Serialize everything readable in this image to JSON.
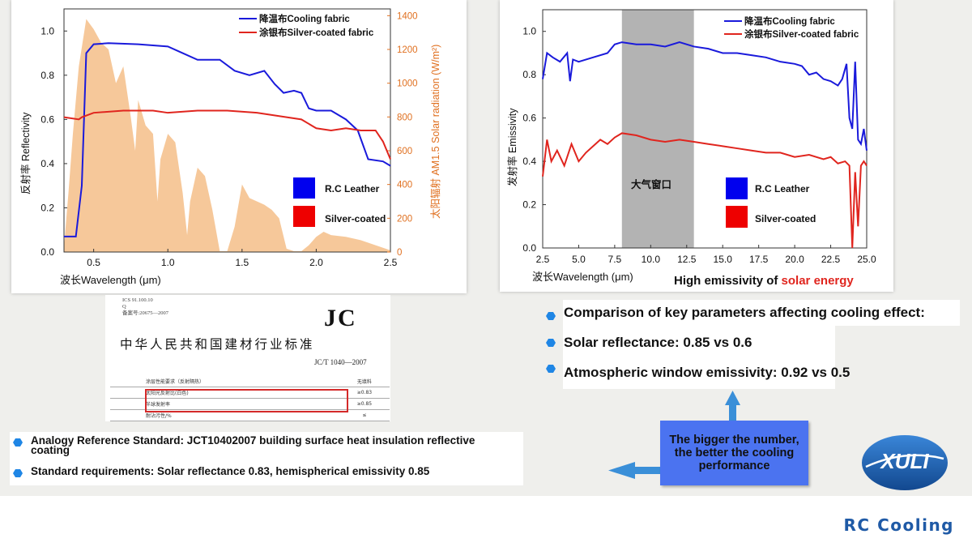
{
  "chart1": {
    "legend_series": [
      "降温布Cooling fabric",
      "涂银布Silver-coated fabric"
    ],
    "box_legend": [
      "R.C Leather",
      "Silver-coated"
    ],
    "xlabel": "波长Wavelength (μm)",
    "ylabel_left": "反射率 Reflectivity",
    "ylabel_right": "太阳辐射 AM1.5 Solar radiation (W/m²)",
    "x_ticks": [
      "0.5",
      "1.0",
      "1.5",
      "2.0",
      "2.5"
    ],
    "y_ticks_left": [
      "0.0",
      "0.2",
      "0.4",
      "0.6",
      "0.8",
      "1.0"
    ],
    "y_ticks_right": [
      "0",
      "200",
      "400",
      "600",
      "800",
      "1000",
      "1200",
      "1400"
    ]
  },
  "chart2": {
    "legend_series": [
      "降温布Cooling fabric",
      "涂银布Silver-coated fabric"
    ],
    "box_legend": [
      "R.C Leather",
      "Silver-coated"
    ],
    "xlabel": "波长Wavelength (μm)",
    "ylabel": "发射率 Emissivity",
    "x_ticks": [
      "2.5",
      "5.0",
      "7.5",
      "10.0",
      "12.5",
      "15.0",
      "17.5",
      "20.0",
      "22.5",
      "25.0"
    ],
    "y_ticks": [
      "0.0",
      "0.2",
      "0.4",
      "0.6",
      "0.8",
      "1.0"
    ],
    "window_label": "大气窗口",
    "caption_prefix": "High emissivity of ",
    "caption_highlight": "solar energy"
  },
  "chart_data": [
    {
      "type": "line",
      "xlim": [
        0.3,
        2.5
      ],
      "ylim": [
        0,
        1.1
      ],
      "y2lim": [
        0,
        1440
      ],
      "series": [
        {
          "name": "降温布Cooling fabric",
          "color": "#1a1adb",
          "x": [
            0.3,
            0.38,
            0.42,
            0.45,
            0.5,
            0.6,
            0.8,
            1.0,
            1.1,
            1.2,
            1.35,
            1.45,
            1.55,
            1.65,
            1.72,
            1.78,
            1.85,
            1.9,
            1.95,
            2.0,
            2.1,
            2.2,
            2.28,
            2.35,
            2.45,
            2.5
          ],
          "y": [
            0.07,
            0.07,
            0.3,
            0.9,
            0.94,
            0.945,
            0.94,
            0.93,
            0.9,
            0.87,
            0.87,
            0.82,
            0.8,
            0.82,
            0.76,
            0.72,
            0.73,
            0.72,
            0.65,
            0.64,
            0.64,
            0.6,
            0.55,
            0.42,
            0.41,
            0.39
          ]
        },
        {
          "name": "涂银布Silver-coated fabric",
          "color": "#e0251e",
          "x": [
            0.3,
            0.4,
            0.42,
            0.5,
            0.7,
            0.9,
            1.0,
            1.2,
            1.4,
            1.6,
            1.8,
            1.9,
            2.0,
            2.1,
            2.2,
            2.3,
            2.4,
            2.45,
            2.5
          ],
          "y": [
            0.61,
            0.6,
            0.61,
            0.63,
            0.64,
            0.64,
            0.63,
            0.64,
            0.64,
            0.63,
            0.61,
            0.6,
            0.56,
            0.55,
            0.56,
            0.55,
            0.55,
            0.5,
            0.42
          ]
        }
      ],
      "area": {
        "name": "AM1.5 Solar radiation",
        "color": "#f6c89a",
        "x": [
          0.3,
          0.33,
          0.36,
          0.4,
          0.45,
          0.5,
          0.55,
          0.6,
          0.65,
          0.7,
          0.75,
          0.78,
          0.8,
          0.85,
          0.9,
          0.93,
          0.95,
          1.0,
          1.05,
          1.1,
          1.13,
          1.15,
          1.2,
          1.25,
          1.3,
          1.35,
          1.4,
          1.45,
          1.5,
          1.55,
          1.6,
          1.65,
          1.7,
          1.75,
          1.8,
          1.85,
          1.9,
          1.95,
          2.0,
          2.05,
          2.1,
          2.2,
          2.3,
          2.4,
          2.5
        ],
        "y": [
          30,
          350,
          700,
          1100,
          1380,
          1320,
          1240,
          1200,
          1000,
          1100,
          800,
          600,
          900,
          750,
          700,
          300,
          550,
          700,
          650,
          350,
          100,
          300,
          500,
          450,
          250,
          5,
          5,
          150,
          400,
          320,
          300,
          280,
          250,
          200,
          20,
          5,
          5,
          40,
          90,
          120,
          100,
          90,
          70,
          40,
          10
        ]
      }
    },
    {
      "type": "line",
      "xlim": [
        2.5,
        25.0
      ],
      "ylim": [
        0,
        1.1
      ],
      "highlight_band": [
        8.0,
        13.0
      ],
      "series": [
        {
          "name": "降温布Cooling fabric",
          "color": "#1a1adb",
          "x": [
            2.5,
            2.8,
            3.2,
            3.7,
            4.2,
            4.4,
            4.6,
            5.0,
            6.0,
            7.0,
            7.5,
            8.0,
            9.0,
            10.0,
            11.0,
            12.0,
            13.0,
            14.0,
            15.0,
            16.0,
            17.0,
            18.0,
            19.0,
            20.0,
            20.5,
            21.0,
            21.5,
            22.0,
            22.5,
            23.0,
            23.3,
            23.6,
            23.8,
            24.0,
            24.2,
            24.4,
            24.6,
            24.8,
            25.0
          ],
          "y": [
            0.78,
            0.9,
            0.88,
            0.86,
            0.9,
            0.77,
            0.87,
            0.86,
            0.88,
            0.9,
            0.94,
            0.95,
            0.94,
            0.94,
            0.93,
            0.95,
            0.93,
            0.92,
            0.9,
            0.9,
            0.89,
            0.88,
            0.86,
            0.85,
            0.84,
            0.8,
            0.81,
            0.78,
            0.77,
            0.75,
            0.78,
            0.85,
            0.6,
            0.55,
            0.86,
            0.5,
            0.48,
            0.55,
            0.45
          ]
        },
        {
          "name": "涂银布Silver-coated fabric",
          "color": "#e0251e",
          "x": [
            2.5,
            2.8,
            3.1,
            3.5,
            4.0,
            4.5,
            5.0,
            5.5,
            6.0,
            6.5,
            7.0,
            7.5,
            8.0,
            9.0,
            10.0,
            11.0,
            12.0,
            13.0,
            14.0,
            15.0,
            16.0,
            17.0,
            18.0,
            19.0,
            20.0,
            21.0,
            22.0,
            22.5,
            23.0,
            23.5,
            23.8,
            24.0,
            24.2,
            24.4,
            24.6,
            24.8,
            25.0
          ],
          "y": [
            0.33,
            0.5,
            0.4,
            0.45,
            0.38,
            0.48,
            0.4,
            0.44,
            0.47,
            0.5,
            0.48,
            0.51,
            0.53,
            0.52,
            0.5,
            0.49,
            0.5,
            0.49,
            0.48,
            0.47,
            0.46,
            0.45,
            0.44,
            0.44,
            0.42,
            0.43,
            0.41,
            0.42,
            0.39,
            0.4,
            0.38,
            0.0,
            0.35,
            0.1,
            0.38,
            0.4,
            0.38
          ]
        }
      ]
    }
  ],
  "doc": {
    "code_lines": [
      "ICS 91.100.10",
      "Q",
      "备案号:20675—2007"
    ],
    "jc": "JC",
    "title": "中华人民共和国建材行业标准",
    "std_number": "JC/T 1040—2007",
    "table_rows": [
      [
        "涂层性能要求（反射隔热）",
        "无填料"
      ],
      [
        "太阳光反射比(白色)",
        "≥0.83"
      ],
      [
        "半球发射率",
        "≥0.85"
      ],
      [
        "耐沾污性/%",
        "≤"
      ]
    ]
  },
  "left_bullets": [
    "Analogy Reference Standard: JCT10402007 building surface heat insulation reflective coating",
    "Standard requirements: Solar reflectance 0.83, hemispherical emissivity 0.85"
  ],
  "right_bullets": [
    "Comparison of key parameters affecting cooling effect:",
    "Solar reflectance: 0.85 vs 0.6",
    "Atmospheric window emissivity: 0.92 vs 0.5"
  ],
  "callout": "The bigger the number, the better the cooling performance",
  "logo_text": "XULI",
  "brand": "RC Cooling",
  "colors": {
    "accent_blue": "#1f86e5",
    "callout_bg": "#4b73f0",
    "brand_blue": "#1f5aa6",
    "logo_blue": "#1e63b8"
  }
}
